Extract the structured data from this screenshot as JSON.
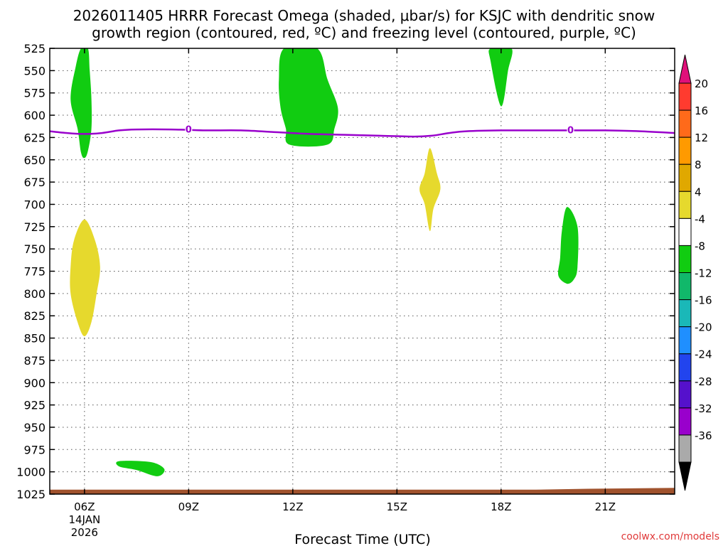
{
  "title_line1": "2026011405 HRRR Forecast Omega (shaded, μbar/s) for KSJC with dendritic snow",
  "title_line2": "growth region (contoured, red, ºC) and freezing level (contoured, purple, ºC)",
  "credit": "coolwx.com/models",
  "chart_data": {
    "type": "contour",
    "xlabel": "Forecast Time (UTC)",
    "ylabel": "",
    "xlim": [
      5.0,
      23.0
    ],
    "ylim": [
      525,
      1025
    ],
    "y_ticks": [
      525,
      550,
      575,
      600,
      625,
      650,
      675,
      700,
      725,
      750,
      775,
      800,
      825,
      850,
      875,
      900,
      925,
      950,
      975,
      1000,
      1025
    ],
    "x_ticks": [
      {
        "hour": 6,
        "label": "06Z",
        "sub1": "14JAN",
        "sub2": "2026"
      },
      {
        "hour": 9,
        "label": "09Z"
      },
      {
        "hour": 12,
        "label": "12Z"
      },
      {
        "hour": 15,
        "label": "15Z"
      },
      {
        "hour": 18,
        "label": "18Z"
      },
      {
        "hour": 21,
        "label": "21Z"
      }
    ],
    "grid": true,
    "freezing_level": {
      "color": "#9900cc",
      "label": "0",
      "label_hours": [
        9.0,
        20.0
      ],
      "points": [
        [
          5.0,
          618
        ],
        [
          5.5,
          620
        ],
        [
          6.0,
          621
        ],
        [
          6.5,
          620
        ],
        [
          7.0,
          617
        ],
        [
          7.5,
          616
        ],
        [
          8.5,
          616
        ],
        [
          9.5,
          617
        ],
        [
          10.5,
          617
        ],
        [
          11.5,
          619
        ],
        [
          12.5,
          621
        ],
        [
          13.5,
          622
        ],
        [
          14.5,
          623
        ],
        [
          15.5,
          624
        ],
        [
          16.0,
          623
        ],
        [
          16.5,
          620
        ],
        [
          17.0,
          618
        ],
        [
          18.0,
          617
        ],
        [
          19.0,
          617
        ],
        [
          20.0,
          617
        ],
        [
          21.0,
          617
        ],
        [
          22.0,
          618
        ],
        [
          23.0,
          620
        ]
      ]
    },
    "omega_regions": [
      {
        "value": -6,
        "color": "#11cc11",
        "points": [
          [
            5.9,
            525
          ],
          [
            6.1,
            525
          ],
          [
            6.15,
            550
          ],
          [
            6.2,
            582
          ],
          [
            6.2,
            615
          ],
          [
            6.1,
            640
          ],
          [
            6.0,
            648
          ],
          [
            5.9,
            642
          ],
          [
            5.8,
            615
          ],
          [
            5.6,
            582
          ],
          [
            5.75,
            545
          ]
        ]
      },
      {
        "value": -6,
        "color": "#11cc11",
        "points": [
          [
            11.75,
            525
          ],
          [
            12.7,
            525
          ],
          [
            13.0,
            560
          ],
          [
            13.3,
            592
          ],
          [
            13.2,
            615
          ],
          [
            13.0,
            633
          ],
          [
            11.9,
            633
          ],
          [
            11.8,
            615
          ],
          [
            11.65,
            592
          ],
          [
            11.6,
            560
          ]
        ]
      },
      {
        "value": -6,
        "color": "#11cc11",
        "points": [
          [
            17.7,
            525
          ],
          [
            18.3,
            525
          ],
          [
            18.2,
            550
          ],
          [
            18.0,
            590
          ],
          [
            17.7,
            540
          ]
        ]
      },
      {
        "value": -6,
        "color": "#11cc11",
        "points": [
          [
            19.9,
            703
          ],
          [
            20.2,
            725
          ],
          [
            20.2,
            770
          ],
          [
            20.1,
            784
          ],
          [
            19.9,
            789
          ],
          [
            19.65,
            780
          ],
          [
            19.7,
            760
          ],
          [
            19.75,
            730
          ]
        ]
      },
      {
        "value": -6,
        "color": "#11cc11",
        "points": [
          [
            7.0,
            988
          ],
          [
            7.9,
            989
          ],
          [
            8.3,
            997
          ],
          [
            8.1,
            1005
          ],
          [
            7.5,
            998
          ],
          [
            7.0,
            994
          ]
        ]
      },
      {
        "value": 6,
        "color": "#e6d92d",
        "points": [
          [
            6.0,
            717
          ],
          [
            6.3,
            740
          ],
          [
            6.45,
            770
          ],
          [
            6.35,
            800
          ],
          [
            6.2,
            832
          ],
          [
            6.0,
            848
          ],
          [
            5.8,
            832
          ],
          [
            5.6,
            800
          ],
          [
            5.6,
            770
          ],
          [
            5.7,
            740
          ]
        ]
      },
      {
        "value": 6,
        "color": "#e6d92d",
        "points": [
          [
            15.95,
            637
          ],
          [
            16.15,
            665
          ],
          [
            16.25,
            683
          ],
          [
            16.05,
            705
          ],
          [
            15.95,
            730
          ],
          [
            15.8,
            700
          ],
          [
            15.65,
            683
          ],
          [
            15.8,
            665
          ]
        ]
      }
    ],
    "surface": {
      "color": "#a0522d",
      "points": [
        [
          5.0,
          1020
        ],
        [
          19.0,
          1020
        ],
        [
          20.5,
          1019
        ],
        [
          23.0,
          1018
        ]
      ]
    },
    "colorbar": {
      "ticks": [
        "20",
        "16",
        "12",
        "8",
        "4",
        "-4",
        "-8",
        "-12",
        "-16",
        "-20",
        "-24",
        "-28",
        "-32",
        "-36"
      ],
      "colors": [
        "#e9c0c7",
        "#ff3b2f",
        "#ff6a1a",
        "#ff9a00",
        "#e0a800",
        "#e6d92d",
        "#ffffff",
        "#11cc11",
        "#11b86a",
        "#1ab8b8",
        "#1f8fff",
        "#2244ee",
        "#5511cc",
        "#9900cc",
        "#aaaaaa"
      ],
      "top_arrow_color": "#e0107a",
      "bottom_arrow_color": "#000000"
    }
  }
}
